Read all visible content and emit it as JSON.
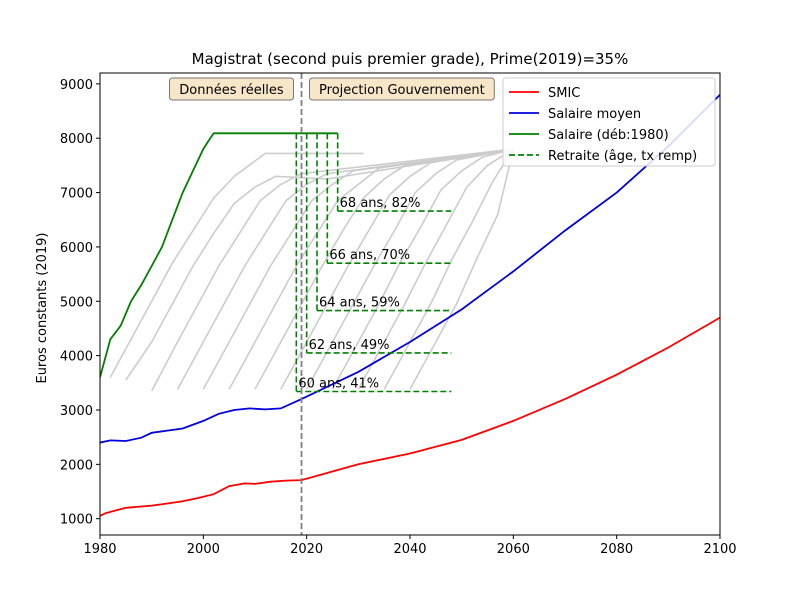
{
  "chart_data": {
    "type": "line",
    "title": "Magistrat (second puis premier grade), Prime(2019)=35%",
    "xlabel": "",
    "ylabel": "Euros constants (2019)",
    "xlim": [
      1980,
      2100
    ],
    "ylim": [
      700,
      9200
    ],
    "xticks": [
      1980,
      2000,
      2020,
      2040,
      2060,
      2080,
      2100
    ],
    "yticks": [
      1000,
      2000,
      3000,
      4000,
      5000,
      6000,
      7000,
      8000,
      9000
    ],
    "grid": false,
    "legend_position": "top-right",
    "vline": {
      "x": 2019,
      "color": "#808080",
      "style": "dashed"
    },
    "boxes": [
      {
        "text": "Données réelles",
        "side": "left"
      },
      {
        "text": "Projection Gouvernement",
        "side": "right"
      }
    ],
    "series": [
      {
        "name": "SMIC",
        "color": "#ff0000",
        "x": [
          1980,
          1981,
          1983,
          1985,
          1990,
          1993,
          1996,
          1999,
          2002,
          2005,
          2008,
          2010,
          2013,
          2016,
          2019,
          2030,
          2040,
          2050,
          2060,
          2070,
          2080,
          2090,
          2100
        ],
        "y": [
          1050,
          1100,
          1150,
          1200,
          1240,
          1280,
          1320,
          1380,
          1450,
          1600,
          1650,
          1640,
          1680,
          1700,
          1710,
          2000,
          2200,
          2450,
          2800,
          3200,
          3650,
          4150,
          4700
        ]
      },
      {
        "name": "Salaire moyen",
        "color": "#0000dd",
        "x": [
          1980,
          1982,
          1985,
          1988,
          1990,
          1993,
          1996,
          2000,
          2003,
          2006,
          2009,
          2012,
          2015,
          2019,
          2030,
          2040,
          2050,
          2060,
          2070,
          2080,
          2090,
          2100
        ],
        "y": [
          2400,
          2440,
          2430,
          2490,
          2580,
          2620,
          2660,
          2800,
          2930,
          3000,
          3030,
          3010,
          3030,
          3200,
          3700,
          4250,
          4850,
          5550,
          6300,
          7000,
          7850,
          8800
        ]
      },
      {
        "name": "Salaire (déb:1980)",
        "color": "#008000",
        "x": [
          1980,
          1982,
          1984,
          1986,
          1988,
          1990,
          1992,
          1994,
          1996,
          1998,
          2000,
          2001,
          2002,
          2005,
          2010,
          2015,
          2020,
          2026
        ],
        "y": [
          3600,
          4300,
          4550,
          5000,
          5300,
          5650,
          6000,
          6500,
          7000,
          7400,
          7800,
          7950,
          8090,
          8090,
          8090,
          8090,
          8090,
          8090
        ]
      }
    ],
    "retirement_legend": "Retraite (âge, tx remp)",
    "retirement_color": "#008000",
    "retirements": [
      {
        "label": "60 ans, 41%",
        "x_retire": 2018,
        "x_end": 2048,
        "y": 3340
      },
      {
        "label": "62 ans, 49%",
        "x_retire": 2020,
        "x_end": 2048,
        "y": 4050
      },
      {
        "label": "64 ans, 59%",
        "x_retire": 2022,
        "x_end": 2048,
        "y": 4830
      },
      {
        "label": "66 ans, 70%",
        "x_retire": 2024,
        "x_end": 2048,
        "y": 5700
      },
      {
        "label": "68 ans, 82%",
        "x_retire": 2026,
        "x_end": 2048,
        "y": 6660
      }
    ],
    "cohort_curves_color": "#cccccc",
    "cohort_curves": [
      {
        "x": [
          1982,
          1986,
          1990,
          1994,
          1998,
          2002,
          2006,
          2012,
          2031
        ],
        "y": [
          3600,
          4300,
          5000,
          5700,
          6300,
          6900,
          7300,
          7720,
          7720
        ]
      },
      {
        "x": [
          1985,
          1990,
          1994,
          1998,
          2002,
          2006,
          2010,
          2014,
          2024,
          2060
        ],
        "y": [
          3550,
          4250,
          4950,
          5650,
          6250,
          6800,
          7100,
          7300,
          7250,
          7800
        ]
      },
      {
        "x": [
          1990,
          1995,
          1999,
          2003,
          2007,
          2011,
          2015,
          2019,
          2060
        ],
        "y": [
          3350,
          4250,
          4950,
          5650,
          6250,
          6850,
          7150,
          7350,
          7800
        ]
      },
      {
        "x": [
          1995,
          2000,
          2004,
          2008,
          2012,
          2016,
          2020,
          2024,
          2060
        ],
        "y": [
          3380,
          4250,
          4950,
          5650,
          6250,
          6850,
          7150,
          7350,
          7800
        ]
      },
      {
        "x": [
          2000,
          2005,
          2009,
          2013,
          2017,
          2021,
          2025,
          2029,
          2060
        ],
        "y": [
          3380,
          4250,
          4950,
          5650,
          6250,
          6850,
          7150,
          7400,
          7800
        ]
      },
      {
        "x": [
          2005,
          2010,
          2014,
          2018,
          2022,
          2026,
          2030,
          2034,
          2060
        ],
        "y": [
          3380,
          4250,
          4950,
          5650,
          6250,
          6850,
          7150,
          7450,
          7800
        ]
      },
      {
        "x": [
          2010,
          2015,
          2019,
          2023,
          2027,
          2031,
          2035,
          2039,
          2060
        ],
        "y": [
          3380,
          4250,
          4950,
          5650,
          6300,
          6900,
          7250,
          7500,
          7800
        ]
      },
      {
        "x": [
          2015,
          2020,
          2024,
          2028,
          2032,
          2036,
          2040,
          2044,
          2060
        ],
        "y": [
          3380,
          4250,
          4950,
          5650,
          6300,
          6950,
          7300,
          7550,
          7800
        ]
      },
      {
        "x": [
          2020,
          2025,
          2029,
          2033,
          2037,
          2041,
          2045,
          2049,
          2060
        ],
        "y": [
          3380,
          4250,
          4950,
          5650,
          6300,
          7000,
          7350,
          7600,
          7800
        ]
      },
      {
        "x": [
          2025,
          2030,
          2034,
          2038,
          2042,
          2046,
          2050,
          2054,
          2060
        ],
        "y": [
          3380,
          4250,
          4950,
          5700,
          6350,
          7050,
          7400,
          7650,
          7800
        ]
      },
      {
        "x": [
          2030,
          2035,
          2039,
          2043,
          2047,
          2051,
          2055,
          2060
        ],
        "y": [
          3380,
          4250,
          4950,
          5700,
          6400,
          7100,
          7500,
          7800
        ]
      },
      {
        "x": [
          2035,
          2040,
          2044,
          2048,
          2052,
          2056,
          2060
        ],
        "y": [
          3380,
          4250,
          4950,
          5750,
          6450,
          7200,
          7800
        ]
      },
      {
        "x": [
          2040,
          2045,
          2049,
          2053,
          2057,
          2060
        ],
        "y": [
          3380,
          4250,
          4950,
          5800,
          6600,
          7800
        ]
      }
    ]
  }
}
